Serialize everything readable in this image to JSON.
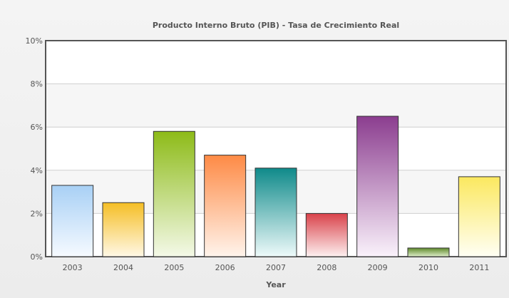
{
  "chart_data": {
    "type": "bar",
    "title": "Producto Interno Bruto (PIB) - Tasa de Crecimiento Real",
    "xlabel": "Year",
    "ylabel": "",
    "categories": [
      "2003",
      "2004",
      "2005",
      "2006",
      "2007",
      "2008",
      "2009",
      "2010",
      "2011"
    ],
    "values": [
      3.3,
      2.5,
      5.8,
      4.7,
      4.1,
      2.0,
      6.5,
      0.4,
      3.7
    ],
    "ylim": [
      0,
      10
    ],
    "yticks": [
      0,
      2,
      4,
      6,
      8,
      10
    ],
    "ytick_labels": [
      "0%",
      "2%",
      "4%",
      "6%",
      "8%",
      "10%"
    ],
    "grid": true,
    "legend": "none",
    "bar_colors": [
      {
        "top": "#a8d0f5",
        "bottom": "#f6faff"
      },
      {
        "top": "#f5be25",
        "bottom": "#fff8e6"
      },
      {
        "top": "#8dbb18",
        "bottom": "#f4f9e8"
      },
      {
        "top": "#fe8a45",
        "bottom": "#fff4ec"
      },
      {
        "top": "#0f8a8a",
        "bottom": "#eefafa"
      },
      {
        "top": "#d9424a",
        "bottom": "#fdf0f0"
      },
      {
        "top": "#8b3d8f",
        "bottom": "#faf2fb"
      },
      {
        "top": "#5f8a2b",
        "bottom": "#dfeecb"
      },
      {
        "top": "#fbe85f",
        "bottom": "#fffff4"
      }
    ],
    "colors": {
      "plot_frame": "#555555",
      "gridline": "#cfcfcf",
      "band_light": "#ffffff",
      "band_dark": "#f6f6f6",
      "text": "#555555"
    }
  }
}
